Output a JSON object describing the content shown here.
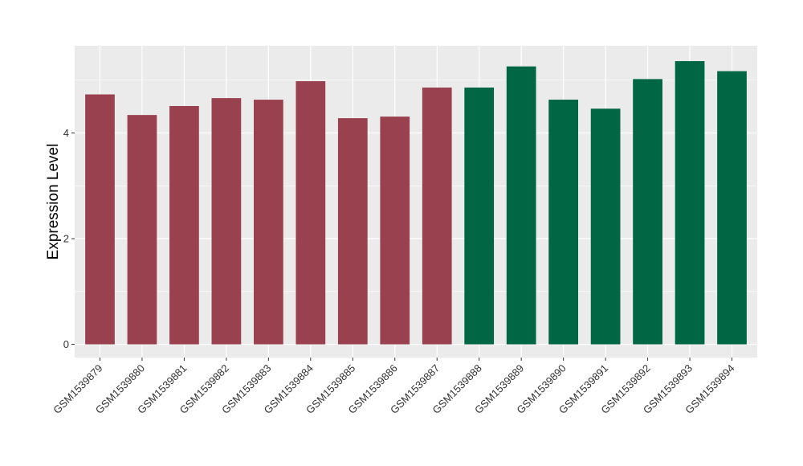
{
  "chart_data": {
    "type": "bar",
    "title": "",
    "xlabel": "",
    "ylabel": "Expression Level",
    "ylim": [
      -0.25,
      5.65
    ],
    "yticks": [
      0,
      2,
      4
    ],
    "grid": true,
    "legend": "none",
    "categories": [
      "GSM1539879",
      "GSM1539880",
      "GSM1539881",
      "GSM1539882",
      "GSM1539883",
      "GSM1539884",
      "GSM1539885",
      "GSM1539886",
      "GSM1539887",
      "GSM1539888",
      "GSM1539889",
      "GSM1539890",
      "GSM1539891",
      "GSM1539892",
      "GSM1539893",
      "GSM1539894"
    ],
    "values": [
      4.73,
      4.34,
      4.51,
      4.66,
      4.63,
      4.98,
      4.28,
      4.31,
      4.86,
      4.86,
      5.26,
      4.63,
      4.46,
      5.02,
      5.36,
      5.17
    ],
    "colors": [
      "#9A4150",
      "#9A4150",
      "#9A4150",
      "#9A4150",
      "#9A4150",
      "#9A4150",
      "#9A4150",
      "#9A4150",
      "#9A4150",
      "#006644",
      "#006644",
      "#006644",
      "#006644",
      "#006644",
      "#006644",
      "#006644"
    ],
    "panel_background": "#EBEBEB",
    "grid_color": "#FFFFFF"
  }
}
